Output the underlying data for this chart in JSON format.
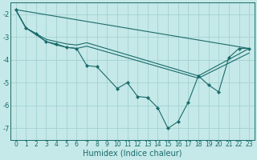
{
  "title": "",
  "xlabel": "Humidex (Indice chaleur)",
  "bg_color": "#c5e8e8",
  "grid_color": "#9ecece",
  "line_color": "#1a6b6b",
  "xlim": [
    -0.5,
    23.5
  ],
  "ylim": [
    -7.5,
    -1.5
  ],
  "yticks": [
    -7,
    -6,
    -5,
    -4,
    -3,
    -2
  ],
  "xticks": [
    0,
    1,
    2,
    3,
    4,
    5,
    6,
    7,
    8,
    9,
    10,
    11,
    12,
    13,
    14,
    15,
    16,
    17,
    18,
    19,
    20,
    21,
    22,
    23
  ],
  "series_zigzag": {
    "x": [
      0,
      1,
      2,
      3,
      4,
      5,
      6,
      7,
      8,
      10,
      11,
      12,
      13,
      14,
      15,
      16,
      17,
      18,
      19,
      20,
      21,
      22,
      23
    ],
    "y": [
      -1.8,
      -2.6,
      -2.85,
      -3.2,
      -3.3,
      -3.45,
      -3.5,
      -4.25,
      -4.3,
      -5.25,
      -5.0,
      -5.6,
      -5.65,
      -6.1,
      -7.0,
      -6.7,
      -5.85,
      -4.7,
      -5.1,
      -5.4,
      -3.9,
      -3.5,
      -3.5
    ]
  },
  "series_line1": {
    "x": [
      0,
      23
    ],
    "y": [
      -1.8,
      -3.5
    ]
  },
  "series_line2": {
    "x": [
      0,
      1,
      2,
      3,
      4,
      5,
      6,
      7,
      18,
      23
    ],
    "y": [
      -1.8,
      -2.6,
      -2.85,
      -3.1,
      -3.2,
      -3.3,
      -3.35,
      -3.25,
      -4.7,
      -3.5
    ]
  },
  "series_line3": {
    "x": [
      0,
      1,
      2,
      3,
      4,
      5,
      6,
      7,
      18,
      23
    ],
    "y": [
      -1.8,
      -2.6,
      -2.9,
      -3.2,
      -3.35,
      -3.45,
      -3.5,
      -3.4,
      -4.8,
      -3.7
    ]
  }
}
